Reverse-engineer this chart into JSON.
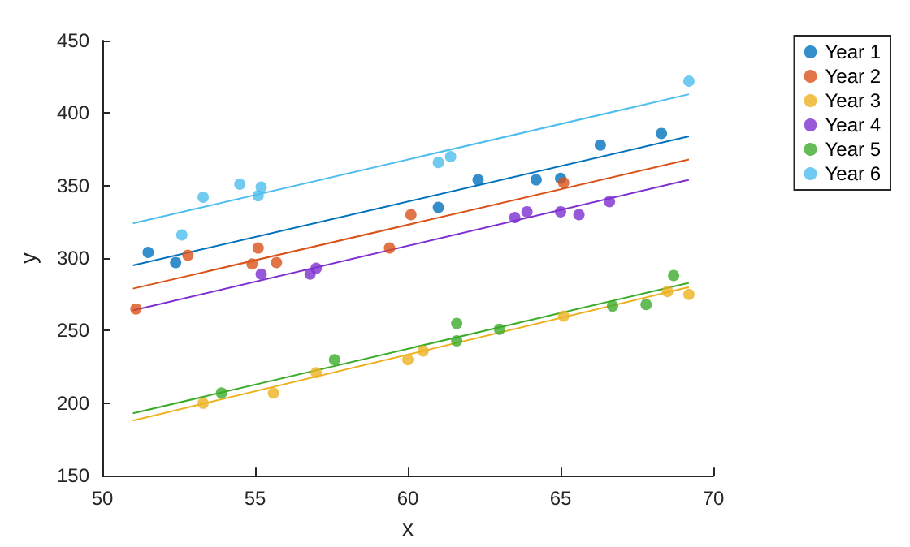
{
  "chart_data": {
    "type": "scatter",
    "xlabel": "x",
    "ylabel": "y",
    "xlim": [
      50,
      70
    ],
    "xticks": [
      50,
      55,
      60,
      65,
      70
    ],
    "ylim": [
      150,
      450
    ],
    "yticks": [
      150,
      200,
      250,
      300,
      350,
      400,
      450
    ],
    "grid": false,
    "legend": "top right",
    "series": [
      {
        "name": "Year 1",
        "marker": "circle",
        "color": "#0072bd",
        "x": [
          51.5,
          52.4,
          61,
          62.3,
          64.2,
          65,
          66.3,
          68.3
        ],
        "values": [
          304,
          297,
          335,
          354,
          354,
          355,
          378,
          386
        ]
      },
      {
        "name": "Year 2",
        "marker": "circle",
        "color": "#d95319",
        "x": [
          51.1,
          52.8,
          54.9,
          55.1,
          55.7,
          59.4,
          60.1,
          65.1
        ],
        "values": [
          265,
          302,
          296,
          307,
          297,
          307,
          330,
          352
        ]
      },
      {
        "name": "Year 3",
        "marker": "circle",
        "color": "#edb120",
        "x": [
          53.3,
          55.6,
          57,
          60,
          60.5,
          65.1,
          68.5,
          69.2
        ],
        "values": [
          200,
          207,
          221,
          230,
          236,
          260,
          277,
          275
        ]
      },
      {
        "name": "Year 4",
        "marker": "circle",
        "color": "#7e2fd0",
        "x": [
          55.2,
          56.8,
          57,
          63.5,
          63.9,
          65,
          65.6,
          66.6
        ],
        "values": [
          289,
          289,
          293,
          328,
          332,
          332,
          330,
          339
        ]
      },
      {
        "name": "Year 5",
        "marker": "circle",
        "color": "#3cab2a",
        "x": [
          53.9,
          57.6,
          61.6,
          61.6,
          63,
          66.7,
          67.8,
          68.7
        ],
        "values": [
          207,
          230,
          243,
          255,
          251,
          267,
          268,
          288
        ]
      },
      {
        "name": "Year 6",
        "marker": "circle",
        "color": "#4dbeee",
        "x": [
          52.6,
          53.3,
          54.5,
          55.1,
          55.2,
          61,
          61.4,
          69.2
        ],
        "values": [
          316,
          342,
          351,
          343,
          349,
          366,
          370,
          422
        ]
      },
      {
        "type": "line",
        "marker": "none",
        "color": "#0072bd",
        "x": [
          51,
          69.2
        ],
        "values": [
          295,
          384
        ]
      },
      {
        "type": "line",
        "marker": "none",
        "color": "#d95319",
        "x": [
          51,
          69.2
        ],
        "values": [
          279,
          368
        ]
      },
      {
        "type": "line",
        "marker": "none",
        "color": "#edb120",
        "x": [
          51,
          69.2
        ],
        "values": [
          188,
          280
        ]
      },
      {
        "type": "line",
        "marker": "none",
        "color": "#7e2fd0",
        "x": [
          51,
          69.2
        ],
        "values": [
          264,
          354
        ]
      },
      {
        "type": "line",
        "marker": "none",
        "color": "#3cab2a",
        "x": [
          51,
          69.2
        ],
        "values": [
          193,
          283
        ]
      },
      {
        "type": "line",
        "marker": "none",
        "color": "#4dbeee",
        "x": [
          51,
          69.2
        ],
        "values": [
          324,
          413
        ]
      }
    ]
  }
}
